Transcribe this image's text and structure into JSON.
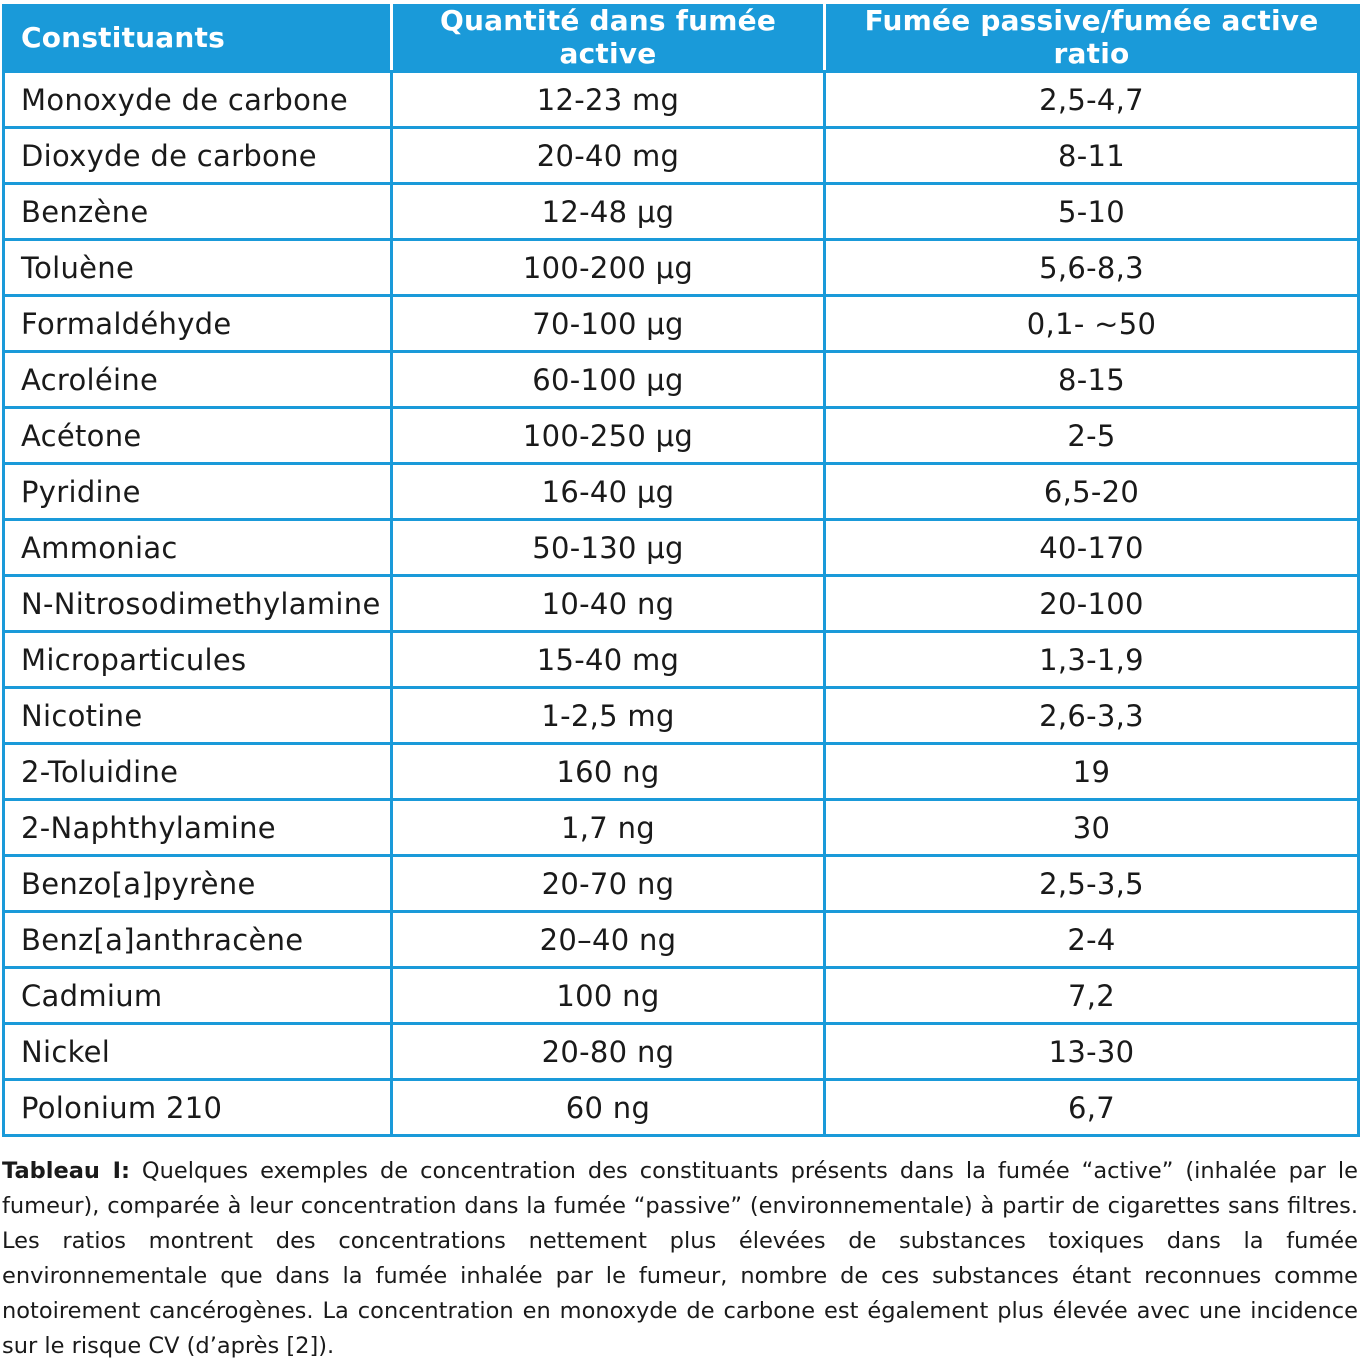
{
  "table": {
    "headers": [
      "Constituants",
      "Quantité dans fumée active",
      "Fumée passive/fumée active ratio"
    ],
    "rows": [
      [
        "Monoxyde de carbone",
        "12-23 mg",
        "2,5-4,7"
      ],
      [
        "Dioxyde de carbone",
        "20-40 mg",
        "8-11"
      ],
      [
        "Benzène",
        "12-48 μg",
        "5-10"
      ],
      [
        "Toluène",
        "100-200 μg",
        "5,6-8,3"
      ],
      [
        "Formaldéhyde",
        "70-100 μg",
        "0,1- ~50"
      ],
      [
        "Acroléine",
        "60-100 μg",
        "8-15"
      ],
      [
        "Acétone",
        "100-250 μg",
        "2-5"
      ],
      [
        "Pyridine",
        "16-40 μg",
        "6,5-20"
      ],
      [
        "Ammoniac",
        "50-130 μg",
        "40-170"
      ],
      [
        "N-Nitrosodimethylamine",
        "10-40 ng",
        "20-100"
      ],
      [
        "Microparticules",
        "15-40 mg",
        "1,3-1,9"
      ],
      [
        "Nicotine",
        "1-2,5 mg",
        "2,6-3,3"
      ],
      [
        "2-Toluidine",
        "160 ng",
        "19"
      ],
      [
        "2-Naphthylamine",
        "1,7 ng",
        "30"
      ],
      [
        "Benzo[a]pyrène",
        "20-70 ng",
        "2,5-3,5"
      ],
      [
        "Benz[a]anthracène",
        "20–40 ng",
        "2-4"
      ],
      [
        "Cadmium",
        "100 ng",
        "7,2"
      ],
      [
        "Nickel",
        "20-80 ng",
        "13-30"
      ],
      [
        "Polonium 210",
        "60 ng",
        "6,7"
      ]
    ]
  },
  "caption": {
    "label": "Tableau I:",
    "text": " Quelques exemples de concentration des constituants présents dans la fumée “active” (inhalée par le fumeur), comparée à leur concentration dans la fumée “passive” (environnementale) à partir de cigarettes sans filtres. Les ratios montrent des concentrations nettement plus élevées de substances toxiques dans la fumée environnementale que dans la fumée inhalée par le fumeur, nombre de ces substances étant reconnues comme notoirement cancérogènes. La concentration en monoxyde de carbone est également plus élevée avec une incidence sur le risque CV (d’après [2])."
  },
  "colors": {
    "accent": "#1a9ad9",
    "header_text": "#ffffff",
    "body_text": "#1a1a1a"
  }
}
